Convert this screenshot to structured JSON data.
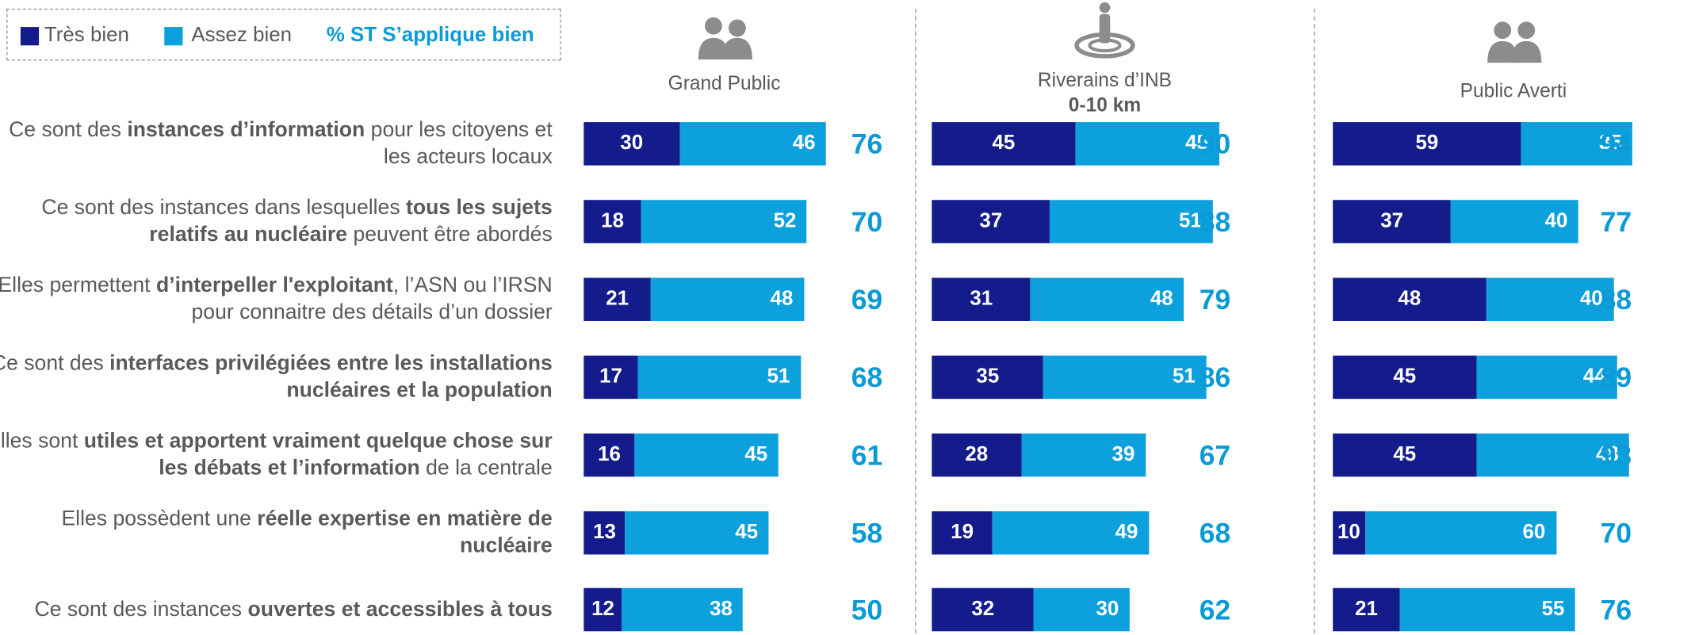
{
  "categories": [
    [
      "Ce sont des ",
      "instances d’information",
      " pour les citoyens et les acteurs locaux"
    ],
    [
      "Ce sont des instances dans lesquelles ",
      "tous les sujets relatifs au nucléaire",
      " peuvent être abordés"
    ],
    [
      "Elles permettent ",
      "d’interpeller l'exploitant",
      ", l’ASN ou l’IRSN pour connaitre des détails d’un dossier"
    ],
    [
      "Ce sont des ",
      "interfaces privilégiées entre les installations nucléaires et la population"
    ],
    [
      "Elles sont ",
      "utiles et apportent vraiment quelque chose sur les débats et l’information",
      " de la centrale"
    ],
    [
      "Elles possèdent une ",
      "réelle expertise en matière de nucléaire"
    ],
    [
      "Ce sont des instances ",
      "ouvertes et accessibles à tous"
    ]
  ],
  "chart_data": [
    {
      "type": "bar",
      "orientation": "horizontal",
      "stacked": true,
      "title": "Grand Public",
      "xlim": [
        0,
        100
      ],
      "series": [
        {
          "name": "Très bien",
          "color": "#141c8c",
          "values": [
            30,
            18,
            21,
            17,
            16,
            13,
            12
          ]
        },
        {
          "name": "Assez bien",
          "color": "#0ca0dc",
          "values": [
            46,
            52,
            48,
            51,
            45,
            45,
            38
          ]
        }
      ],
      "totals": {
        "name": "% ST S’applique bien",
        "color": "#0b9ad6",
        "values": [
          76,
          70,
          69,
          68,
          61,
          58,
          50
        ]
      }
    },
    {
      "type": "bar",
      "orientation": "horizontal",
      "stacked": true,
      "title": "Riverains d’INB",
      "subtitle": "0-10 km",
      "xlim": [
        0,
        100
      ],
      "series": [
        {
          "name": "Très bien",
          "color": "#141c8c",
          "values": [
            45,
            37,
            31,
            35,
            28,
            19,
            32
          ]
        },
        {
          "name": "Assez bien",
          "color": "#0ca0dc",
          "values": [
            45,
            51,
            48,
            51,
            39,
            49,
            30
          ]
        }
      ],
      "totals": {
        "name": "% ST S’applique bien",
        "color": "#0b9ad6",
        "values": [
          90,
          88,
          79,
          86,
          67,
          68,
          62
        ]
      }
    },
    {
      "type": "bar",
      "orientation": "horizontal",
      "stacked": true,
      "title": "Public Averti",
      "xlim": [
        0,
        100
      ],
      "series": [
        {
          "name": "Très bien",
          "color": "#141c8c",
          "values": [
            59,
            37,
            48,
            45,
            45,
            10,
            21
          ]
        },
        {
          "name": "Assez bien",
          "color": "#0ca0dc",
          "values": [
            35,
            40,
            40,
            44,
            48,
            60,
            55
          ]
        }
      ],
      "totals": {
        "name": "% ST S’applique bien",
        "color": "#0b9ad6",
        "values": [
          94,
          77,
          88,
          89,
          93,
          70,
          76
        ]
      }
    }
  ]
}
